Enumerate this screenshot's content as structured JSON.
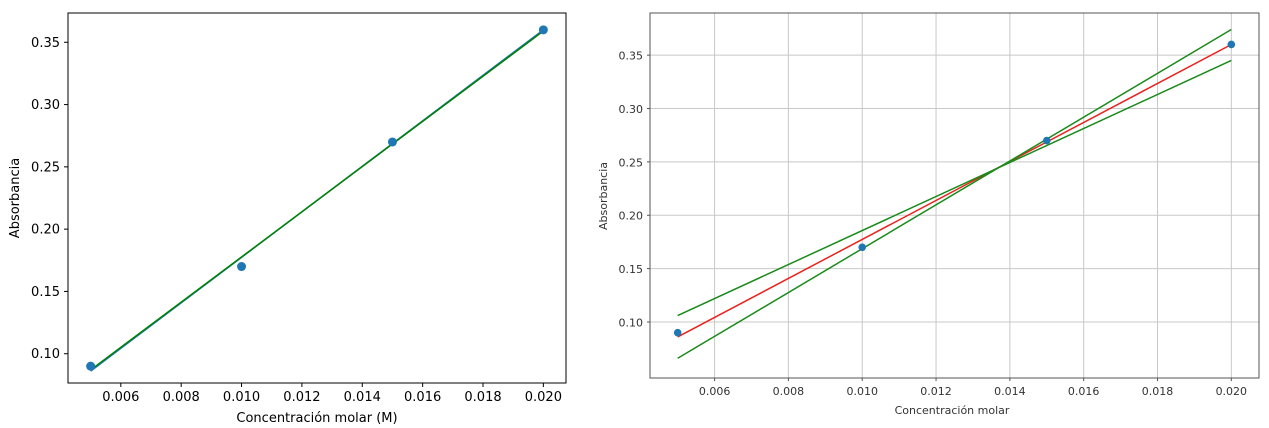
{
  "chart_data": [
    {
      "type": "scatter",
      "xlabel": "Concentración molar (M)",
      "ylabel": "Absorbancia",
      "xlim": [
        0.00425,
        0.02075
      ],
      "ylim": [
        0.0765,
        0.3735
      ],
      "xticks": [
        0.006,
        0.008,
        0.01,
        0.012,
        0.014,
        0.016,
        0.018,
        0.02
      ],
      "xtick_labels": [
        "0.006",
        "0.008",
        "0.010",
        "0.012",
        "0.014",
        "0.016",
        "0.018",
        "0.020"
      ],
      "yticks": [
        0.1,
        0.15,
        0.2,
        0.25,
        0.3,
        0.35
      ],
      "ytick_labels": [
        "0.10",
        "0.15",
        "0.20",
        "0.25",
        "0.30",
        "0.35"
      ],
      "grid": false,
      "points": {
        "x": [
          0.005,
          0.01,
          0.015,
          0.02
        ],
        "y": [
          0.09,
          0.17,
          0.27,
          0.36
        ],
        "color": "#1f77b4"
      },
      "lines": [
        {
          "x": [
            0.005,
            0.02
          ],
          "y": [
            0.086,
            0.36
          ],
          "color": "#1f77b4"
        },
        {
          "x": [
            0.005,
            0.02
          ],
          "y": [
            0.087,
            0.359
          ],
          "color": "#008000"
        }
      ]
    },
    {
      "type": "scatter",
      "xlabel": "Concentración molar",
      "ylabel": "Absorbancia",
      "xlim": [
        0.00425,
        0.02075
      ],
      "ylim": [
        0.0475,
        0.3895
      ],
      "xticks": [
        0.006,
        0.008,
        0.01,
        0.012,
        0.014,
        0.016,
        0.018,
        0.02
      ],
      "xtick_labels": [
        "0.006",
        "0.008",
        "0.010",
        "0.012",
        "0.014",
        "0.016",
        "0.018",
        "0.020"
      ],
      "yticks": [
        0.1,
        0.15,
        0.2,
        0.25,
        0.3,
        0.35
      ],
      "ytick_labels": [
        "0.10",
        "0.15",
        "0.20",
        "0.25",
        "0.30",
        "0.35"
      ],
      "grid": true,
      "points": {
        "x": [
          0.005,
          0.01,
          0.015,
          0.02
        ],
        "y": [
          0.09,
          0.17,
          0.27,
          0.36
        ],
        "color": "#1f77b4"
      },
      "lines": [
        {
          "x": [
            0.005,
            0.02
          ],
          "y": [
            0.086,
            0.36
          ],
          "color": "#e8221c"
        },
        {
          "x": [
            0.005,
            0.02
          ],
          "y": [
            0.106,
            0.345
          ],
          "color": "#1a8a1a"
        },
        {
          "x": [
            0.005,
            0.02
          ],
          "y": [
            0.066,
            0.374
          ],
          "color": "#1a8a1a"
        }
      ]
    }
  ]
}
